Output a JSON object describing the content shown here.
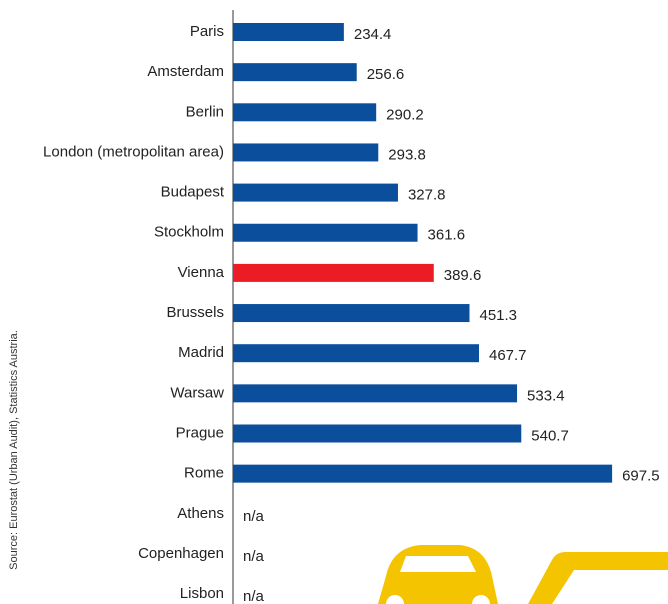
{
  "chart_data": {
    "type": "bar",
    "orientation": "horizontal",
    "source": "Source: Eurostat (Urban Audit), Statistics Austria.",
    "categories": [
      "Paris",
      "Amsterdam",
      "Berlin",
      "London (metropolitan area)",
      "Budapest",
      "Stockholm",
      "Vienna",
      "Brussels",
      "Madrid",
      "Warsaw",
      "Prague",
      "Rome",
      "Athens",
      "Copenhagen",
      "Lisbon"
    ],
    "values": [
      234.4,
      256.6,
      290.2,
      293.8,
      327.8,
      361.6,
      389.6,
      451.3,
      467.7,
      533.4,
      540.7,
      697.5,
      null,
      null,
      null
    ],
    "value_labels": [
      "234.4",
      "256.6",
      "290.2",
      "293.8",
      "327.8",
      "361.6",
      "389.6",
      "451.3",
      "467.7",
      "533.4",
      "540.7",
      "697.5",
      "n/a",
      "n/a",
      "n/a"
    ],
    "colors": [
      "#0b4f9c",
      "#0b4f9c",
      "#0b4f9c",
      "#0b4f9c",
      "#0b4f9c",
      "#0b4f9c",
      "#ec1c24",
      "#0b4f9c",
      "#0b4f9c",
      "#0b4f9c",
      "#0b4f9c",
      "#0b4f9c",
      "#0b4f9c",
      "#0b4f9c",
      "#0b4f9c"
    ],
    "xlim": [
      43,
      794
    ]
  }
}
